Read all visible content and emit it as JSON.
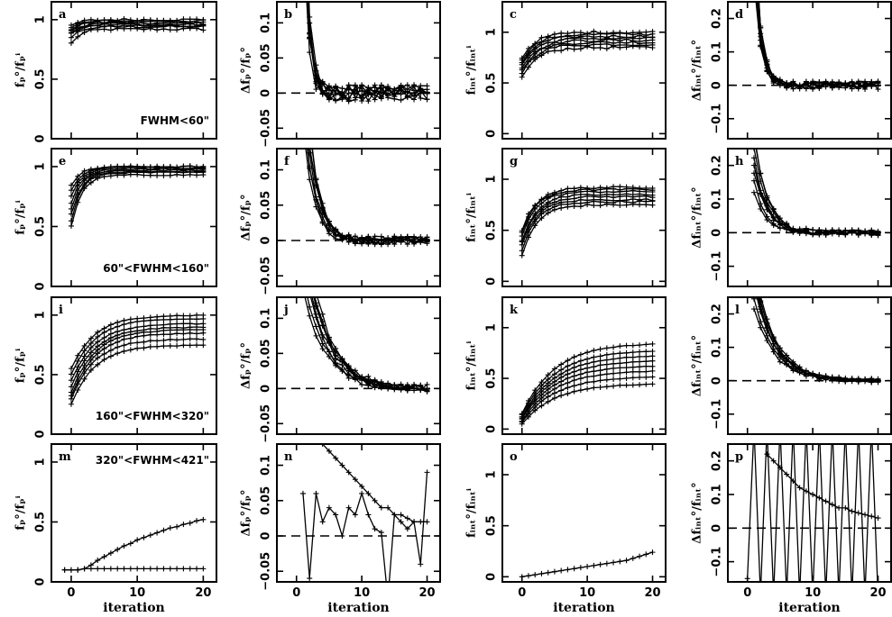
{
  "chart_data": {
    "type": "line",
    "xlabel": "iteration",
    "xlim": [
      -3,
      22
    ],
    "xticks": [
      0,
      10,
      20
    ],
    "columns": [
      {
        "ylabel": "fₚ°/fₚⁱ",
        "ylim": [
          0,
          1.15
        ],
        "yticks": [
          0,
          0.5,
          1
        ],
        "ytick_labels": [
          "0",
          "0.5",
          "1"
        ],
        "ref": null
      },
      {
        "ylabel": "Δfₚ°/fₚ°",
        "ylim": [
          -0.065,
          0.13
        ],
        "yticks": [
          -0.05,
          0,
          0.05,
          0.1
        ],
        "ytick_labels": [
          "−0.05",
          "0",
          "0.05",
          "0.1"
        ],
        "ref": 0
      },
      {
        "ylabel": "fᵢₙₜ°/fᵢₙₜⁱ",
        "ylim": [
          -0.05,
          1.3
        ],
        "yticks": [
          0,
          0.5,
          1
        ],
        "ytick_labels": [
          "0",
          "0.5",
          "1"
        ],
        "ref": null
      },
      {
        "ylabel": "Δfᵢₙₜ°/fᵢₙₜ°",
        "ylim": [
          -0.16,
          0.25
        ],
        "yticks": [
          -0.1,
          0,
          0.1,
          0.2
        ],
        "ytick_labels": [
          "−0.1",
          "0",
          "0.1",
          "0.2"
        ],
        "ref": 0
      }
    ],
    "rows": [
      {
        "annotation": "FWHM<60\"",
        "annotation_col": 0,
        "annotation_pos": "bottom-right"
      },
      {
        "annotation": "60\"<FWHM<160\"",
        "annotation_col": 0,
        "annotation_pos": "bottom-right"
      },
      {
        "annotation": "160\"<FWHM<320\"",
        "annotation_col": 0,
        "annotation_pos": "bottom-right"
      },
      {
        "annotation": "320\"<FWHM<421\"",
        "annotation_col": 0,
        "annotation_pos": "top-right"
      }
    ],
    "panels": [
      {
        "label": "a",
        "row": 0,
        "col": 0,
        "kind": "ratio",
        "finals": [
          0.92,
          0.94,
          0.95,
          0.96,
          0.97,
          0.98,
          0.99,
          1.0
        ],
        "starts": [
          0.8,
          0.85,
          0.88,
          0.9,
          0.9,
          0.92,
          0.93,
          0.95
        ],
        "rate": 0.7,
        "noise": 0.02
      },
      {
        "label": "b",
        "row": 0,
        "col": 1,
        "kind": "delta",
        "amps": [
          0.4,
          0.35,
          0.3,
          0.28,
          0.25,
          0.3,
          0.22,
          0.33
        ],
        "rate": 1.3,
        "noise": 0.012
      },
      {
        "label": "c",
        "row": 0,
        "col": 2,
        "kind": "ratio",
        "finals": [
          0.85,
          0.88,
          0.9,
          0.92,
          0.94,
          0.96,
          0.98,
          1.0
        ],
        "starts": [
          0.55,
          0.6,
          0.62,
          0.65,
          0.68,
          0.7,
          0.72,
          0.75
        ],
        "rate": 0.45,
        "noise": 0.025
      },
      {
        "label": "d",
        "row": 0,
        "col": 3,
        "kind": "delta",
        "amps": [
          0.5,
          0.45,
          0.4,
          0.38,
          0.35,
          0.42,
          0.3,
          0.48
        ],
        "rate": 1.0,
        "noise": 0.012
      },
      {
        "label": "e",
        "row": 1,
        "col": 0,
        "kind": "ratio",
        "finals": [
          0.93,
          0.95,
          0.96,
          0.97,
          0.98,
          0.99,
          1.0,
          1.0
        ],
        "starts": [
          0.5,
          0.55,
          0.6,
          0.65,
          0.7,
          0.75,
          0.8,
          0.85
        ],
        "rate": 0.65,
        "noise": 0.012
      },
      {
        "label": "f",
        "row": 1,
        "col": 1,
        "kind": "delta",
        "amps": [
          0.3,
          0.25,
          0.22,
          0.2,
          0.18,
          0.24,
          0.16,
          0.28
        ],
        "rate": 0.6,
        "noise": 0.006
      },
      {
        "label": "g",
        "row": 1,
        "col": 2,
        "kind": "ratio",
        "finals": [
          0.75,
          0.78,
          0.8,
          0.83,
          0.85,
          0.88,
          0.9,
          0.92
        ],
        "starts": [
          0.25,
          0.3,
          0.35,
          0.38,
          0.4,
          0.45,
          0.48,
          0.5
        ],
        "rate": 0.45,
        "noise": 0.018
      },
      {
        "label": "h",
        "row": 1,
        "col": 3,
        "kind": "delta",
        "amps": [
          0.3,
          0.25,
          0.2,
          0.18,
          0.15,
          0.22,
          0.12,
          0.28
        ],
        "rate": 0.5,
        "noise": 0.008
      },
      {
        "label": "i",
        "row": 2,
        "col": 0,
        "kind": "ratio",
        "finals": [
          0.75,
          0.8,
          0.85,
          0.88,
          0.9,
          0.93,
          0.97,
          1.0
        ],
        "starts": [
          0.25,
          0.3,
          0.32,
          0.35,
          0.4,
          0.45,
          0.5,
          0.55
        ],
        "rate": 0.28,
        "noise": 0.008
      },
      {
        "label": "j",
        "row": 2,
        "col": 1,
        "kind": "delta",
        "amps": [
          0.25,
          0.22,
          0.2,
          0.18,
          0.16,
          0.21,
          0.14,
          0.23
        ],
        "rate": 0.3,
        "noise": 0.005
      },
      {
        "label": "k",
        "row": 2,
        "col": 2,
        "kind": "ratio",
        "finals": [
          0.45,
          0.52,
          0.58,
          0.63,
          0.68,
          0.73,
          0.78,
          0.85
        ],
        "starts": [
          0.05,
          0.07,
          0.08,
          0.1,
          0.11,
          0.12,
          0.14,
          0.15
        ],
        "rate": 0.2,
        "noise": 0.006
      },
      {
        "label": "l",
        "row": 2,
        "col": 3,
        "kind": "delta",
        "amps": [
          0.35,
          0.32,
          0.3,
          0.28,
          0.25,
          0.3,
          0.22,
          0.33
        ],
        "rate": 0.32,
        "noise": 0.006
      },
      {
        "label": "m",
        "row": 3,
        "col": 0,
        "kind": "explicit",
        "series": [
          {
            "x": [
              -1,
              0,
              1,
              2,
              3,
              4,
              5,
              6,
              7,
              8,
              9,
              10,
              11,
              12,
              13,
              14,
              15,
              16,
              17,
              18,
              19,
              20
            ],
            "y": [
              0.1,
              0.1,
              0.1,
              0.11,
              0.14,
              0.18,
              0.21,
              0.24,
              0.27,
              0.3,
              0.32,
              0.35,
              0.37,
              0.39,
              0.41,
              0.43,
              0.45,
              0.46,
              0.48,
              0.49,
              0.51,
              0.52
            ]
          },
          {
            "x": [
              -1,
              0,
              1,
              2,
              3,
              4,
              5,
              6,
              7,
              8,
              9,
              10,
              11,
              12,
              13,
              14,
              15,
              16,
              17,
              18,
              19,
              20
            ],
            "y": [
              0.1,
              0.1,
              0.1,
              0.11,
              0.11,
              0.11,
              0.11,
              0.11,
              0.11,
              0.11,
              0.11,
              0.11,
              0.11,
              0.11,
              0.11,
              0.11,
              0.11,
              0.11,
              0.11,
              0.11,
              0.11,
              0.11
            ]
          }
        ]
      },
      {
        "label": "n",
        "row": 3,
        "col": 1,
        "kind": "explicit",
        "series": [
          {
            "x": [
              1,
              2,
              3,
              4,
              5,
              6,
              7,
              8,
              9,
              10,
              11,
              12,
              13,
              14,
              15,
              16,
              17,
              18,
              19,
              20
            ],
            "y": [
              0.06,
              -0.06,
              0.06,
              0.02,
              0.04,
              0.03,
              0.0,
              0.04,
              0.03,
              0.06,
              0.03,
              0.01,
              0.005,
              -0.09,
              0.03,
              0.02,
              0.01,
              0.02,
              -0.04,
              0.09
            ]
          },
          {
            "x": [
              3,
              4,
              5,
              6,
              7,
              8,
              9,
              10,
              11,
              12,
              13,
              14,
              15,
              16,
              17,
              18,
              19,
              20
            ],
            "y": [
              0.2,
              0.13,
              0.12,
              0.11,
              0.1,
              0.09,
              0.08,
              0.07,
              0.06,
              0.05,
              0.04,
              0.04,
              0.03,
              0.03,
              0.025,
              0.02,
              0.02,
              0.02
            ]
          }
        ]
      },
      {
        "label": "o",
        "row": 3,
        "col": 2,
        "kind": "explicit",
        "series": [
          {
            "x": [
              0,
              1,
              2,
              3,
              4,
              5,
              6,
              7,
              8,
              9,
              10,
              11,
              12,
              13,
              14,
              15,
              16,
              17,
              18,
              19,
              20
            ],
            "y": [
              0.0,
              0.01,
              0.02,
              0.03,
              0.04,
              0.05,
              0.06,
              0.07,
              0.08,
              0.09,
              0.1,
              0.11,
              0.12,
              0.13,
              0.14,
              0.15,
              0.16,
              0.18,
              0.2,
              0.22,
              0.24
            ]
          }
        ]
      },
      {
        "label": "p",
        "row": 3,
        "col": 3,
        "kind": "explicit",
        "series": [
          {
            "x": [
              0,
              1,
              2,
              3,
              4,
              5,
              6,
              7,
              8,
              9,
              10,
              11,
              12,
              13,
              14,
              15,
              16,
              17,
              18,
              19,
              20
            ],
            "y": [
              -0.15,
              0.3,
              -0.2,
              0.3,
              -0.2,
              0.3,
              -0.2,
              0.3,
              -0.2,
              0.3,
              -0.2,
              0.3,
              -0.2,
              0.3,
              -0.2,
              0.3,
              -0.2,
              0.3,
              -0.2,
              0.3,
              -0.2
            ]
          },
          {
            "x": [
              3,
              4,
              5,
              6,
              7,
              8,
              9,
              10,
              11,
              12,
              13,
              14,
              15,
              16,
              17,
              18,
              19,
              20
            ],
            "y": [
              0.22,
              0.2,
              0.18,
              0.16,
              0.14,
              0.12,
              0.11,
              0.1,
              0.09,
              0.08,
              0.07,
              0.06,
              0.06,
              0.05,
              0.045,
              0.04,
              0.035,
              0.03
            ]
          }
        ]
      }
    ]
  }
}
